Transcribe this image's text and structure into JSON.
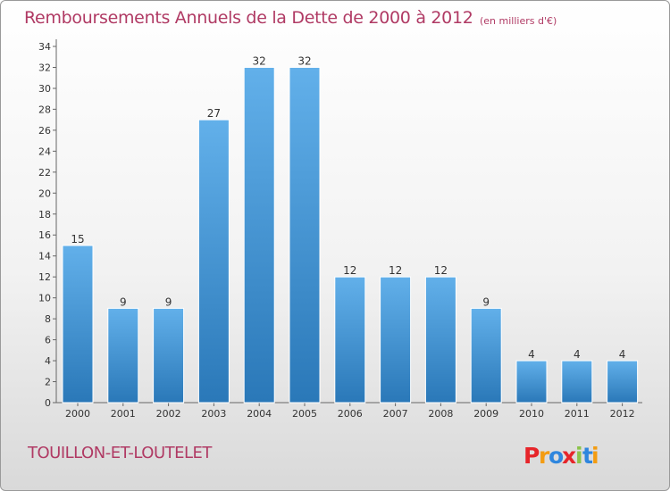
{
  "header": {
    "title": "Remboursements Annuels de la Dette de 2000 à 2012",
    "subtitle": "(en milliers d'€)"
  },
  "footer": {
    "town": "TOUILLON-ET-LOUTELET",
    "logo_text": "Proxiti"
  },
  "colors": {
    "title": "#b03a64",
    "bar_top": "#62b0ea",
    "bar_bottom": "#2a78b8",
    "logo_letters": [
      "#e6252a",
      "#f39c12",
      "#2e86de",
      "#e6252a",
      "#8bc34a",
      "#2e86de",
      "#f39c12"
    ]
  },
  "chart_data": {
    "type": "bar",
    "categories": [
      "2000",
      "2001",
      "2002",
      "2003",
      "2004",
      "2005",
      "2006",
      "2007",
      "2008",
      "2009",
      "2010",
      "2011",
      "2012"
    ],
    "values": [
      15,
      9,
      9,
      27,
      32,
      32,
      12,
      12,
      12,
      9,
      4,
      4,
      4
    ],
    "ylim": [
      0,
      34
    ],
    "yticks": [
      0,
      2,
      4,
      6,
      8,
      10,
      12,
      14,
      16,
      18,
      20,
      22,
      24,
      26,
      28,
      30,
      32,
      34
    ],
    "title": "Remboursements Annuels de la Dette de 2000 à 2012",
    "subtitle": "(en milliers d'€)",
    "xlabel": "",
    "ylabel": "",
    "grid": false,
    "data_labels": true
  }
}
